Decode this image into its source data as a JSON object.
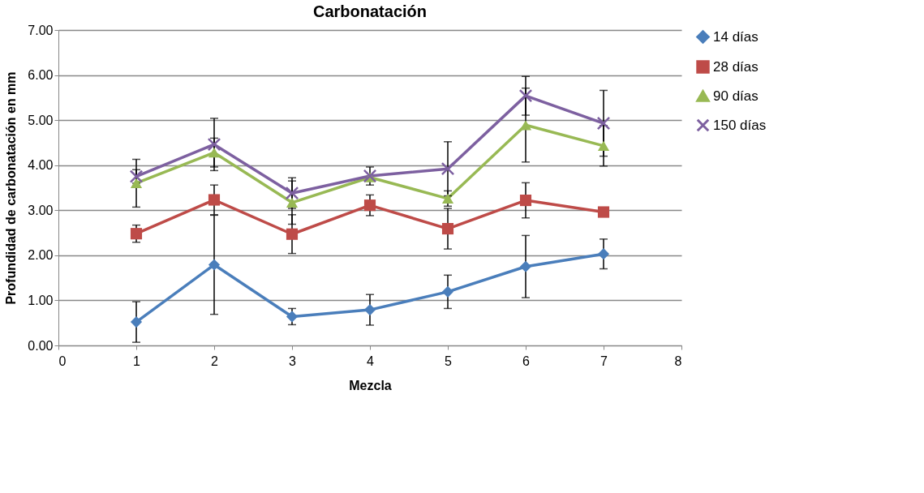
{
  "chart_data": {
    "type": "line",
    "title": "Carbonatación",
    "xlabel": "Mezcla",
    "ylabel": "Profundidad de carbonatación en mm",
    "x": [
      1,
      2,
      3,
      4,
      5,
      6,
      7
    ],
    "series": [
      {
        "name": "14 días",
        "color": "#4a7ebb",
        "marker": "diamond",
        "values": [
          0.52,
          1.79,
          0.64,
          0.79,
          1.19,
          1.75,
          2.03
        ],
        "errors": [
          0.45,
          1.1,
          0.18,
          0.34,
          0.37,
          0.69,
          0.33
        ]
      },
      {
        "name": "28 días",
        "color": "#be4b48",
        "marker": "square",
        "values": [
          2.48,
          3.23,
          2.47,
          3.11,
          2.59,
          3.22,
          2.96
        ],
        "errors": [
          0.19,
          0.33,
          0.43,
          0.23,
          0.45,
          0.39,
          null
        ]
      },
      {
        "name": "90 días",
        "color": "#98b954",
        "marker": "triangle",
        "values": [
          3.6,
          4.28,
          3.17,
          3.73,
          3.26,
          4.89,
          4.43
        ],
        "errors": [
          0.53,
          0.32,
          0.48,
          null,
          0.17,
          0.82,
          0.45
        ]
      },
      {
        "name": "150 días",
        "color": "#7d60a0",
        "marker": "cross",
        "values": [
          3.75,
          4.46,
          3.38,
          3.76,
          3.92,
          5.54,
          4.93
        ],
        "errors": [
          0.15,
          0.58,
          0.34,
          0.2,
          0.6,
          0.43,
          0.73
        ]
      }
    ],
    "xlim": [
      0,
      8
    ],
    "xticks": [
      0,
      1,
      2,
      3,
      4,
      5,
      6,
      7,
      8
    ],
    "ylim": [
      0,
      7
    ],
    "yticks": [
      {
        "value": 0,
        "label": "0.00"
      },
      {
        "value": 1,
        "label": "1.00"
      },
      {
        "value": 2,
        "label": "2.00"
      },
      {
        "value": 3,
        "label": "3.00"
      },
      {
        "value": 4,
        "label": "4.00"
      },
      {
        "value": 5,
        "label": "5.00"
      },
      {
        "value": 6,
        "label": "6.00"
      },
      {
        "value": 7,
        "label": "7.00"
      }
    ],
    "grid": "y",
    "legend": "right",
    "line_style": "solid"
  }
}
